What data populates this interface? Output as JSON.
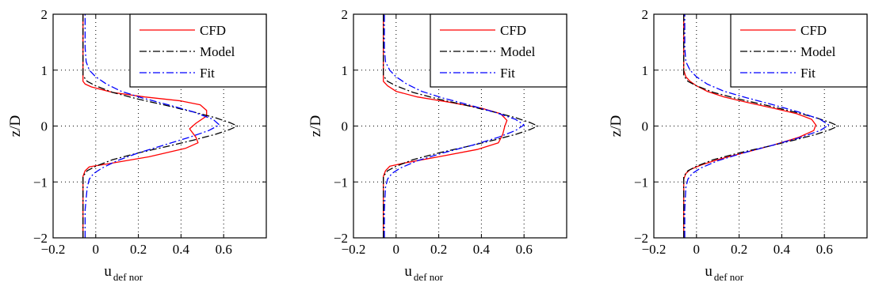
{
  "chart_data": [
    {
      "type": "line",
      "xlabel": "u",
      "xlabel_sub": "def nor",
      "ylabel": "z/D",
      "xlim": [
        -0.2,
        0.8
      ],
      "ylim": [
        -2,
        2
      ],
      "xticks": [
        -0.2,
        0,
        0.2,
        0.4,
        0.6
      ],
      "xtick_labels": [
        "−0.2",
        "0",
        "0.2",
        "0.4",
        "0.6"
      ],
      "yticks": [
        -2,
        -1,
        0,
        1,
        2
      ],
      "ytick_labels": [
        "−2",
        "−1",
        "0",
        "1",
        "2"
      ],
      "grid": true,
      "legend": "top-right",
      "series": [
        {
          "name": "CFD",
          "color": "#ff0000",
          "style": "solid",
          "x": [
            -0.06,
            -0.06,
            -0.06,
            -0.06,
            -0.05,
            -0.03,
            0.05,
            0.25,
            0.42,
            0.48,
            0.47,
            0.44,
            0.47,
            0.52,
            0.52,
            0.49,
            0.4,
            0.23,
            0.08,
            -0.02,
            -0.05,
            -0.06,
            -0.06,
            -0.06,
            -0.06
          ],
          "y": [
            -2,
            -1.5,
            -1.1,
            -0.9,
            -0.8,
            -0.73,
            -0.68,
            -0.55,
            -0.4,
            -0.3,
            -0.2,
            -0.05,
            0.05,
            0.18,
            0.28,
            0.38,
            0.45,
            0.52,
            0.6,
            0.7,
            0.75,
            0.8,
            1.0,
            1.5,
            2
          ]
        },
        {
          "name": "Model",
          "color": "#000000",
          "style": "dashdot",
          "x": [
            -0.06,
            -0.06,
            -0.06,
            -0.04,
            0.0,
            0.08,
            0.2,
            0.34,
            0.46,
            0.56,
            0.63,
            0.665,
            0.63,
            0.56,
            0.46,
            0.34,
            0.2,
            0.08,
            0.0,
            -0.04,
            -0.06,
            -0.06,
            -0.06
          ],
          "y": [
            -2,
            -1.2,
            -0.9,
            -0.8,
            -0.72,
            -0.6,
            -0.48,
            -0.36,
            -0.25,
            -0.15,
            -0.06,
            0,
            0.06,
            0.15,
            0.25,
            0.36,
            0.48,
            0.6,
            0.72,
            0.8,
            0.9,
            1.2,
            2
          ]
        },
        {
          "name": "Fit",
          "color": "#0000ff",
          "style": "dashdot",
          "x": [
            -0.05,
            -0.05,
            -0.04,
            -0.03,
            -0.01,
            0.03,
            0.1,
            0.2,
            0.32,
            0.44,
            0.53,
            0.58,
            0.55,
            0.46,
            0.34,
            0.22,
            0.12,
            0.05,
            0.0,
            -0.03,
            -0.045,
            -0.05,
            -0.05
          ],
          "y": [
            -2,
            -1.5,
            -1.1,
            -0.95,
            -0.85,
            -0.75,
            -0.62,
            -0.48,
            -0.34,
            -0.2,
            -0.08,
            0.02,
            0.12,
            0.25,
            0.38,
            0.5,
            0.62,
            0.75,
            0.88,
            1.0,
            1.15,
            1.4,
            2
          ]
        }
      ]
    },
    {
      "type": "line",
      "xlabel": "u",
      "xlabel_sub": "def nor",
      "ylabel": "z/D",
      "xlim": [
        -0.2,
        0.8
      ],
      "ylim": [
        -2,
        2
      ],
      "xticks": [
        -0.2,
        0,
        0.2,
        0.4,
        0.6
      ],
      "xtick_labels": [
        "−0.2",
        "0",
        "0.2",
        "0.4",
        "0.6"
      ],
      "yticks": [
        -2,
        -1,
        0,
        1,
        2
      ],
      "ytick_labels": [
        "−2",
        "−1",
        "0",
        "1",
        "2"
      ],
      "grid": true,
      "legend": "top-right",
      "series": [
        {
          "name": "CFD",
          "color": "#ff0000",
          "style": "solid",
          "x": [
            -0.06,
            -0.06,
            -0.06,
            -0.06,
            -0.05,
            -0.03,
            0.04,
            0.2,
            0.38,
            0.48,
            0.5,
            0.51,
            0.52,
            0.49,
            0.4,
            0.26,
            0.1,
            0.0,
            -0.04,
            -0.06,
            -0.06,
            -0.06,
            -0.06
          ],
          "y": [
            -2,
            -1.5,
            -1.1,
            -0.9,
            -0.8,
            -0.72,
            -0.66,
            -0.55,
            -0.42,
            -0.3,
            -0.15,
            0,
            0.1,
            0.22,
            0.32,
            0.42,
            0.52,
            0.62,
            0.72,
            0.8,
            1.0,
            1.5,
            2
          ]
        },
        {
          "name": "Model",
          "color": "#000000",
          "style": "dashdot",
          "x": [
            -0.06,
            -0.06,
            -0.06,
            -0.04,
            0.0,
            0.08,
            0.2,
            0.34,
            0.46,
            0.56,
            0.63,
            0.665,
            0.63,
            0.56,
            0.46,
            0.34,
            0.2,
            0.08,
            0.0,
            -0.04,
            -0.06,
            -0.06,
            -0.06
          ],
          "y": [
            -2,
            -1.2,
            -0.9,
            -0.8,
            -0.72,
            -0.6,
            -0.48,
            -0.36,
            -0.25,
            -0.15,
            -0.06,
            0,
            0.06,
            0.15,
            0.25,
            0.36,
            0.48,
            0.6,
            0.72,
            0.8,
            0.9,
            1.2,
            2
          ]
        },
        {
          "name": "Fit",
          "color": "#0000ff",
          "style": "dashdot",
          "x": [
            -0.055,
            -0.055,
            -0.05,
            -0.04,
            -0.02,
            0.02,
            0.1,
            0.22,
            0.36,
            0.48,
            0.56,
            0.6,
            0.56,
            0.46,
            0.34,
            0.22,
            0.12,
            0.05,
            0.0,
            -0.03,
            -0.05,
            -0.055,
            -0.055
          ],
          "y": [
            -2,
            -1.5,
            -1.1,
            -0.95,
            -0.85,
            -0.75,
            -0.62,
            -0.48,
            -0.34,
            -0.2,
            -0.08,
            0.02,
            0.12,
            0.25,
            0.38,
            0.5,
            0.62,
            0.75,
            0.88,
            1.0,
            1.15,
            1.4,
            2
          ]
        }
      ]
    },
    {
      "type": "line",
      "xlabel": "u",
      "xlabel_sub": "def nor",
      "ylabel": "z/D",
      "xlim": [
        -0.2,
        0.8
      ],
      "ylim": [
        -2,
        2
      ],
      "xticks": [
        -0.2,
        0,
        0.2,
        0.4,
        0.6
      ],
      "xtick_labels": [
        "−0.2",
        "0",
        "0.2",
        "0.4",
        "0.6"
      ],
      "yticks": [
        -2,
        -1,
        0,
        1,
        2
      ],
      "ytick_labels": [
        "−2",
        "−1",
        "0",
        "1",
        "2"
      ],
      "grid": true,
      "legend": "top-right",
      "series": [
        {
          "name": "CFD",
          "color": "#ff0000",
          "style": "solid",
          "x": [
            -0.06,
            -0.06,
            -0.06,
            -0.06,
            -0.05,
            -0.03,
            0.02,
            0.1,
            0.22,
            0.36,
            0.48,
            0.55,
            0.56,
            0.54,
            0.47,
            0.36,
            0.24,
            0.13,
            0.05,
            0.0,
            -0.03,
            -0.05,
            -0.06,
            -0.06,
            -0.06
          ],
          "y": [
            -2,
            -1.5,
            -1.1,
            -0.95,
            -0.85,
            -0.78,
            -0.7,
            -0.6,
            -0.48,
            -0.34,
            -0.2,
            -0.08,
            0.02,
            0.12,
            0.22,
            0.32,
            0.42,
            0.52,
            0.62,
            0.72,
            0.8,
            0.88,
            1.0,
            1.5,
            2
          ]
        },
        {
          "name": "Model",
          "color": "#000000",
          "style": "dashdot",
          "x": [
            -0.06,
            -0.06,
            -0.06,
            -0.04,
            0.0,
            0.08,
            0.2,
            0.34,
            0.46,
            0.56,
            0.63,
            0.665,
            0.63,
            0.56,
            0.46,
            0.34,
            0.2,
            0.08,
            0.0,
            -0.04,
            -0.06,
            -0.06,
            -0.06
          ],
          "y": [
            -2,
            -1.2,
            -0.9,
            -0.8,
            -0.72,
            -0.6,
            -0.48,
            -0.36,
            -0.25,
            -0.15,
            -0.06,
            0,
            0.06,
            0.15,
            0.25,
            0.36,
            0.48,
            0.6,
            0.72,
            0.8,
            0.9,
            1.2,
            2
          ]
        },
        {
          "name": "Fit",
          "color": "#0000ff",
          "style": "dashdot",
          "x": [
            -0.055,
            -0.055,
            -0.05,
            -0.04,
            -0.02,
            0.02,
            0.1,
            0.22,
            0.36,
            0.49,
            0.58,
            0.62,
            0.58,
            0.48,
            0.36,
            0.24,
            0.13,
            0.05,
            0.0,
            -0.03,
            -0.05,
            -0.055,
            -0.055
          ],
          "y": [
            -2,
            -1.5,
            -1.1,
            -0.95,
            -0.85,
            -0.75,
            -0.62,
            -0.48,
            -0.34,
            -0.2,
            -0.08,
            0.02,
            0.12,
            0.25,
            0.38,
            0.5,
            0.62,
            0.75,
            0.88,
            1.0,
            1.15,
            1.4,
            2
          ]
        }
      ]
    }
  ]
}
